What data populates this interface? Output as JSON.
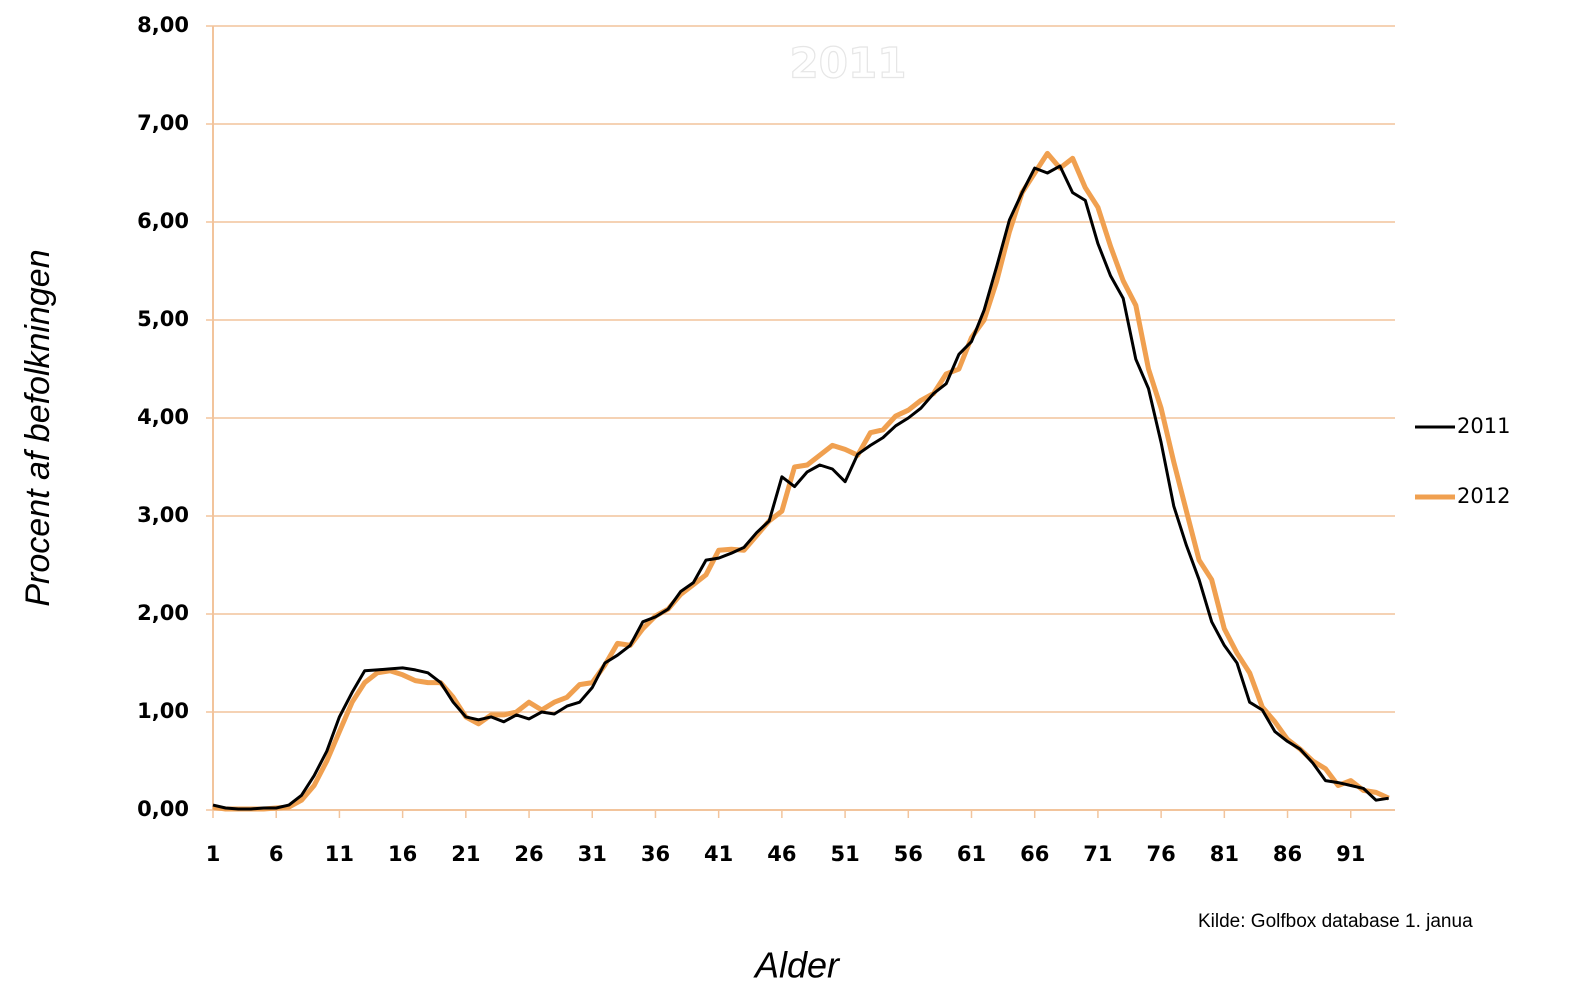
{
  "chart_data": {
    "type": "line",
    "title": "2011",
    "x_label": "Alder",
    "y_label": "Procent af befolkningen",
    "source": "Kilde: Golfbox database 1. janua",
    "x": [
      1,
      2,
      3,
      4,
      5,
      6,
      7,
      8,
      9,
      10,
      11,
      12,
      13,
      14,
      15,
      16,
      17,
      18,
      19,
      20,
      21,
      22,
      23,
      24,
      25,
      26,
      27,
      28,
      29,
      30,
      31,
      32,
      33,
      34,
      35,
      36,
      37,
      38,
      39,
      40,
      41,
      42,
      43,
      44,
      45,
      46,
      47,
      48,
      49,
      50,
      51,
      52,
      53,
      54,
      55,
      56,
      57,
      58,
      59,
      60,
      61,
      62,
      63,
      64,
      65,
      66,
      67,
      68,
      69,
      70,
      71,
      72,
      73,
      74,
      75,
      76,
      77,
      78,
      79,
      80,
      81,
      82,
      83,
      84,
      85,
      86,
      87,
      88,
      89,
      90,
      91,
      92,
      93,
      94
    ],
    "xlim": [
      1,
      94.5
    ],
    "xticks": [
      1,
      6,
      11,
      16,
      21,
      26,
      31,
      36,
      41,
      46,
      51,
      56,
      61,
      66,
      71,
      76,
      81,
      86,
      91
    ],
    "ylim": [
      0,
      8
    ],
    "yticks": [
      {
        "value": 0,
        "label": "0,00"
      },
      {
        "value": 1,
        "label": "1,00"
      },
      {
        "value": 2,
        "label": "2,00"
      },
      {
        "value": 3,
        "label": "3,00"
      },
      {
        "value": 4,
        "label": "4,00"
      },
      {
        "value": 5,
        "label": "5,00"
      },
      {
        "value": 6,
        "label": "6,00"
      },
      {
        "value": 7,
        "label": "7,00"
      },
      {
        "value": 8,
        "label": "8,00"
      }
    ],
    "grid": true,
    "legend": "right",
    "series": [
      {
        "name": "2011",
        "color": "#000000",
        "values": [
          0.05,
          0.02,
          0.01,
          0.01,
          0.02,
          0.02,
          0.05,
          0.15,
          0.35,
          0.6,
          0.95,
          1.2,
          1.42,
          1.43,
          1.44,
          1.45,
          1.43,
          1.4,
          1.3,
          1.1,
          0.95,
          0.92,
          0.95,
          0.9,
          0.97,
          0.93,
          1.0,
          0.98,
          1.06,
          1.1,
          1.25,
          1.5,
          1.58,
          1.68,
          1.92,
          1.97,
          2.05,
          2.23,
          2.32,
          2.55,
          2.57,
          2.62,
          2.68,
          2.83,
          2.95,
          3.4,
          3.3,
          3.45,
          3.52,
          3.48,
          3.35,
          3.63,
          3.72,
          3.8,
          3.92,
          4.0,
          4.1,
          4.25,
          4.35,
          4.65,
          4.78,
          5.1,
          5.55,
          6.02,
          6.3,
          6.55,
          6.5,
          6.57,
          6.3,
          6.22,
          5.78,
          5.45,
          5.22,
          4.6,
          4.3,
          3.75,
          3.1,
          2.7,
          2.35,
          1.92,
          1.68,
          1.5,
          1.1,
          1.02,
          0.8,
          0.7,
          0.62,
          0.48,
          0.3,
          0.28,
          0.25,
          0.22,
          0.1,
          0.12
        ]
      },
      {
        "name": "2012",
        "color": "#f0a050",
        "values": [
          0.03,
          0.01,
          0.01,
          0.01,
          0.01,
          0.02,
          0.03,
          0.1,
          0.25,
          0.5,
          0.8,
          1.1,
          1.3,
          1.4,
          1.42,
          1.38,
          1.32,
          1.3,
          1.3,
          1.15,
          0.95,
          0.88,
          0.97,
          0.97,
          1.0,
          1.1,
          1.02,
          1.1,
          1.15,
          1.28,
          1.3,
          1.48,
          1.7,
          1.68,
          1.85,
          1.98,
          2.05,
          2.2,
          2.3,
          2.4,
          2.65,
          2.66,
          2.65,
          2.8,
          2.95,
          3.05,
          3.5,
          3.52,
          3.62,
          3.72,
          3.68,
          3.62,
          3.85,
          3.88,
          4.02,
          4.08,
          4.18,
          4.25,
          4.45,
          4.5,
          4.82,
          5.0,
          5.4,
          5.9,
          6.3,
          6.5,
          6.7,
          6.55,
          6.65,
          6.35,
          6.15,
          5.75,
          5.4,
          5.15,
          4.5,
          4.1,
          3.55,
          3.05,
          2.55,
          2.35,
          1.85,
          1.6,
          1.4,
          1.05,
          0.9,
          0.72,
          0.62,
          0.5,
          0.42,
          0.25,
          0.3,
          0.2,
          0.18,
          0.12
        ]
      }
    ]
  }
}
